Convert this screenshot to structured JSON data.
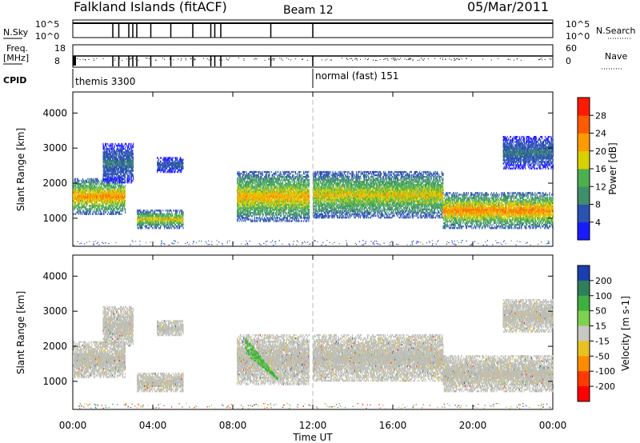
{
  "header": {
    "title": "Falkland Islands (fitACF)",
    "beam": "Beam 12",
    "date": "05/Mar/2011"
  },
  "top_panels": {
    "nsky_label": "N.Sky",
    "nsky_ticks": [
      "10^5",
      "10^0"
    ],
    "nsearch_label": "N.Search",
    "nsearch_ticks": [
      "10^5",
      "10^0"
    ],
    "freq_label": "Freq.",
    "freq_unit": "[MHz]",
    "freq_ticks": [
      "18",
      "8"
    ],
    "nave_label": "Nave",
    "nave_ticks": [
      "60",
      "0"
    ],
    "cpid_label": "CPID",
    "cpid_modes": [
      {
        "label": "themis 3300",
        "start_hour": 0,
        "end_hour": 12
      },
      {
        "label": "normal (fast) 151",
        "start_hour": 12,
        "end_hour": 24
      }
    ]
  },
  "chart_data": [
    {
      "type": "heatmap",
      "name": "power",
      "ylabel": "Slant Range [km]",
      "xlabel": "Time UT",
      "x_range_hours": [
        0,
        24
      ],
      "ylim": [
        200,
        4600
      ],
      "yticks": [
        "1000",
        "2000",
        "3000",
        "4000"
      ],
      "xticks": [
        "00:00",
        "04:00",
        "08:00",
        "12:00",
        "16:00",
        "20:00",
        "00:00"
      ],
      "colorbar": {
        "label": "Power [dB]",
        "ticks": [
          "4",
          "8",
          "12",
          "16",
          "20",
          "24",
          "28"
        ],
        "colors": [
          "#1a1aff",
          "#2a52b0",
          "#3f8f6a",
          "#4caf50",
          "#d8d000",
          "#ff9a00",
          "#ff5a00",
          "#ff1a00"
        ]
      },
      "echo_regions": [
        {
          "t0": 0.0,
          "t1": 2.6,
          "r0": 1100,
          "r1": 2100,
          "peak": 26
        },
        {
          "t0": 1.5,
          "t1": 3.0,
          "r0": 2000,
          "r1": 3100,
          "peak": 10
        },
        {
          "t0": 3.2,
          "t1": 5.5,
          "r0": 700,
          "r1": 1200,
          "peak": 22
        },
        {
          "t0": 4.2,
          "t1": 5.5,
          "r0": 2300,
          "r1": 2700,
          "peak": 8
        },
        {
          "t0": 8.2,
          "t1": 11.8,
          "r0": 900,
          "r1": 2300,
          "peak": 24
        },
        {
          "t0": 12.0,
          "t1": 18.5,
          "r0": 1000,
          "r1": 2300,
          "peak": 22
        },
        {
          "t0": 18.5,
          "t1": 24.0,
          "r0": 700,
          "r1": 1700,
          "peak": 27
        },
        {
          "t0": 21.5,
          "t1": 24.0,
          "r0": 2400,
          "r1": 3300,
          "peak": 10
        }
      ]
    },
    {
      "type": "heatmap",
      "name": "velocity",
      "ylabel": "Slant Range [km]",
      "xlabel": "Time UT",
      "x_range_hours": [
        0,
        24
      ],
      "ylim": [
        200,
        4600
      ],
      "yticks": [
        "1000",
        "2000",
        "3000",
        "4000"
      ],
      "xticks": [
        "00:00",
        "04:00",
        "08:00",
        "12:00",
        "16:00",
        "20:00",
        "00:00"
      ],
      "colorbar": {
        "label": "Velocity [m s-1]",
        "ticks": [
          "200",
          "100",
          "50",
          "15",
          "-15",
          "-50",
          "-100",
          "-200"
        ],
        "colors": [
          "#1b3fb0",
          "#2f7f5a",
          "#3faf3f",
          "#7fd24f",
          "#c8c8c0",
          "#e8c020",
          "#ff8c00",
          "#ff3a00",
          "#ff0000"
        ]
      },
      "ground_scatter_color": "#bdbdb7",
      "highlight": {
        "t0": 8.6,
        "t1": 10.2,
        "r0": 1100,
        "r1": 2300,
        "velocity": "50-100"
      }
    }
  ],
  "x_axis_title": "Time UT"
}
